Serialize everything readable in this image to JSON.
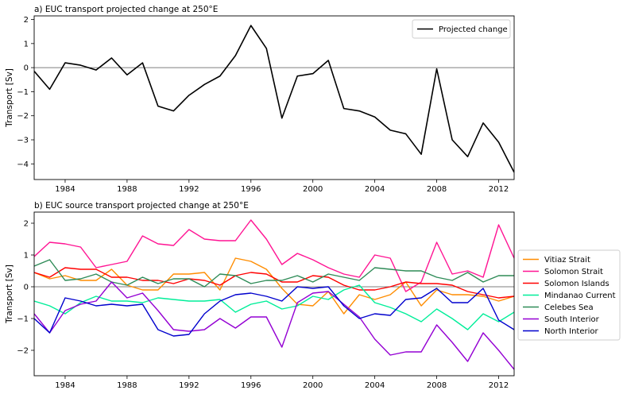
{
  "chart_data": [
    {
      "type": "line",
      "title": "a) EUC transport projected change at 250°E",
      "xlabel": "",
      "ylabel": "Transport [Sv]",
      "xlim": [
        1982,
        2013
      ],
      "ylim": [
        -4.65,
        2.15
      ],
      "x_ticks": [
        1984,
        1988,
        1992,
        1996,
        2000,
        2004,
        2008,
        2012
      ],
      "y_ticks": [
        -4,
        -3,
        -2,
        -1,
        0,
        1,
        2
      ],
      "grid": false,
      "zero_line": true,
      "legend_position": "upper-right",
      "x": [
        1982,
        1983,
        1984,
        1985,
        1986,
        1987,
        1988,
        1989,
        1990,
        1991,
        1992,
        1993,
        1994,
        1995,
        1996,
        1997,
        1998,
        1999,
        2000,
        2001,
        2002,
        2003,
        2004,
        2005,
        2006,
        2007,
        2008,
        2009,
        2010,
        2011,
        2012,
        2013
      ],
      "series": [
        {
          "name": "Projected change",
          "color": "#000000",
          "values": [
            -0.15,
            -0.9,
            0.2,
            0.1,
            -0.1,
            0.4,
            -0.3,
            0.2,
            -1.6,
            -1.8,
            -1.15,
            -0.7,
            -0.35,
            0.5,
            1.75,
            0.8,
            -2.1,
            -0.35,
            -0.25,
            0.3,
            -1.7,
            -1.8,
            -2.05,
            -2.6,
            -2.75,
            -3.6,
            -0.05,
            -3.0,
            -3.7,
            -2.3,
            -3.1,
            -4.35
          ]
        }
      ]
    },
    {
      "type": "line",
      "title": "b) EUC source transport projected change at 250°E",
      "xlabel": "",
      "ylabel": "Transport [Sv]",
      "xlim": [
        1982,
        2013
      ],
      "ylim": [
        -2.8,
        2.35
      ],
      "x_ticks": [
        1984,
        1988,
        1992,
        1996,
        2000,
        2004,
        2008,
        2012
      ],
      "y_ticks": [
        -2,
        -1,
        0,
        1,
        2
      ],
      "grid": false,
      "zero_line": true,
      "legend_position": "right-outside",
      "x": [
        1982,
        1983,
        1984,
        1985,
        1986,
        1987,
        1988,
        1989,
        1990,
        1991,
        1992,
        1993,
        1994,
        1995,
        1996,
        1997,
        1998,
        1999,
        2000,
        2001,
        2002,
        2003,
        2004,
        2005,
        2006,
        2007,
        2008,
        2009,
        2010,
        2011,
        2012,
        2013
      ],
      "series": [
        {
          "name": "Vitiaz Strait",
          "color": "#ff8c00",
          "values": [
            0.45,
            0.25,
            0.35,
            0.2,
            0.2,
            0.55,
            0.05,
            -0.1,
            -0.1,
            0.4,
            0.4,
            0.45,
            -0.1,
            0.9,
            0.8,
            0.55,
            -0.05,
            -0.55,
            -0.6,
            -0.15,
            -0.85,
            -0.25,
            -0.4,
            -0.25,
            0.15,
            -0.6,
            -0.1,
            -0.25,
            -0.25,
            -0.3,
            -0.45,
            -0.3
          ]
        },
        {
          "name": "Solomon Strait",
          "color": "#ff1493",
          "values": [
            0.95,
            1.4,
            1.35,
            1.25,
            0.6,
            0.7,
            0.8,
            1.6,
            1.35,
            1.3,
            1.8,
            1.5,
            1.45,
            1.45,
            2.1,
            1.5,
            0.7,
            1.05,
            0.85,
            0.6,
            0.4,
            0.3,
            1.0,
            0.9,
            -0.15,
            0.15,
            1.4,
            0.4,
            0.5,
            0.3,
            1.95,
            0.9
          ]
        },
        {
          "name": "Solomon Islands",
          "color": "#ff0000",
          "values": [
            0.45,
            0.3,
            0.6,
            0.55,
            0.55,
            0.3,
            0.3,
            0.2,
            0.2,
            0.1,
            0.25,
            0.2,
            0.05,
            0.35,
            0.45,
            0.4,
            0.15,
            0.15,
            0.35,
            0.3,
            0.05,
            -0.1,
            -0.1,
            0.0,
            0.15,
            0.1,
            0.1,
            0.05,
            -0.15,
            -0.25,
            -0.35,
            -0.3
          ]
        },
        {
          "name": "Mindanao Current",
          "color": "#00ee99",
          "values": [
            -0.45,
            -0.6,
            -0.85,
            -0.5,
            -0.3,
            -0.45,
            -0.45,
            -0.5,
            -0.35,
            -0.4,
            -0.45,
            -0.45,
            -0.4,
            -0.8,
            -0.55,
            -0.45,
            -0.7,
            -0.6,
            -0.3,
            -0.4,
            -0.1,
            0.05,
            -0.5,
            -0.65,
            -0.85,
            -1.1,
            -0.7,
            -1.0,
            -1.35,
            -0.85,
            -1.1,
            -0.8
          ]
        },
        {
          "name": "Celebes Sea",
          "color": "#2e8b57",
          "values": [
            0.65,
            0.85,
            0.2,
            0.25,
            0.4,
            0.15,
            0.05,
            0.3,
            0.1,
            0.25,
            0.25,
            0.0,
            0.4,
            0.35,
            0.1,
            0.2,
            0.2,
            0.35,
            0.15,
            0.4,
            0.3,
            0.2,
            0.6,
            0.55,
            0.5,
            0.5,
            0.3,
            0.2,
            0.45,
            0.15,
            0.35,
            0.35
          ]
        },
        {
          "name": "South Interior",
          "color": "#9400d3",
          "values": [
            -0.85,
            -1.45,
            -0.75,
            -0.55,
            -0.45,
            0.15,
            -0.35,
            -0.2,
            -0.75,
            -1.35,
            -1.4,
            -1.35,
            -1.0,
            -1.3,
            -0.95,
            -0.95,
            -1.9,
            -0.5,
            -0.2,
            -0.15,
            -0.55,
            -0.95,
            -1.65,
            -2.15,
            -2.05,
            -2.05,
            -1.2,
            -1.75,
            -2.35,
            -1.45,
            -2.0,
            -2.6
          ]
        },
        {
          "name": "North Interior",
          "color": "#0000cd",
          "values": [
            -1.0,
            -1.45,
            -0.35,
            -0.45,
            -0.6,
            -0.55,
            -0.6,
            -0.55,
            -1.35,
            -1.55,
            -1.5,
            -0.85,
            -0.45,
            -0.25,
            -0.2,
            -0.3,
            -0.45,
            0.0,
            -0.05,
            0.0,
            -0.6,
            -1.0,
            -0.85,
            -0.9,
            -0.4,
            -0.35,
            -0.05,
            -0.5,
            -0.5,
            -0.05,
            -1.05,
            -1.35
          ]
        }
      ]
    }
  ]
}
